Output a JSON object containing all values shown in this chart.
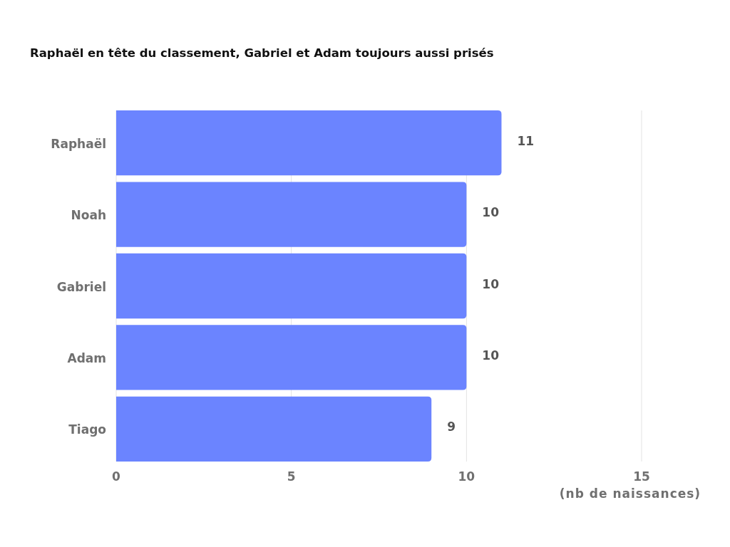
{
  "chart_data": {
    "type": "bar",
    "orientation": "horizontal",
    "title": "Raphaël en tête du classement, Gabriel et Adam toujours aussi prisés",
    "xlabel": "(nb de naissances)",
    "categories": [
      "Raphaël",
      "Noah",
      "Gabriel",
      "Adam",
      "Tiago"
    ],
    "values": [
      11,
      10,
      10,
      10,
      9
    ],
    "color": "#6b84ff",
    "xlim": [
      0,
      15
    ],
    "xticks": [
      0,
      5,
      10,
      15
    ],
    "grid": "x",
    "data_labels": true
  }
}
